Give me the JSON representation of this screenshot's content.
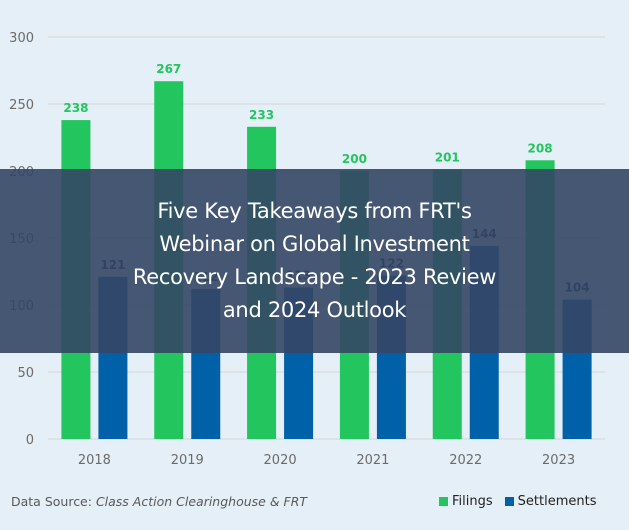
{
  "chart_data": {
    "type": "bar",
    "title": "",
    "xlabel": "",
    "ylabel": "",
    "categories": [
      "2018",
      "2019",
      "2020",
      "2021",
      "2022",
      "2023"
    ],
    "series": [
      {
        "name": "Filings",
        "color": "#22C55E",
        "label_color": "#22C55E",
        "values": [
          238,
          267,
          233,
          200,
          201,
          208
        ]
      },
      {
        "name": "Settlements",
        "color": "#0060A8",
        "label_color": "#0C2F5C",
        "values": [
          121,
          112,
          113,
          122,
          144,
          104
        ]
      }
    ],
    "ylim": [
      0,
      300
    ],
    "yticks": [
      0,
      50,
      100,
      150,
      200,
      250,
      300
    ],
    "grid": true,
    "legend": "bottom-right"
  },
  "source": {
    "prefix": "Data Source: ",
    "name": "Class Action Clearinghouse & FRT"
  },
  "overlay": {
    "title": "Five Key Takeaways from FRT's Webinar on Global Investment Recovery Landscape - 2023 Review and 2024 Outlook"
  }
}
